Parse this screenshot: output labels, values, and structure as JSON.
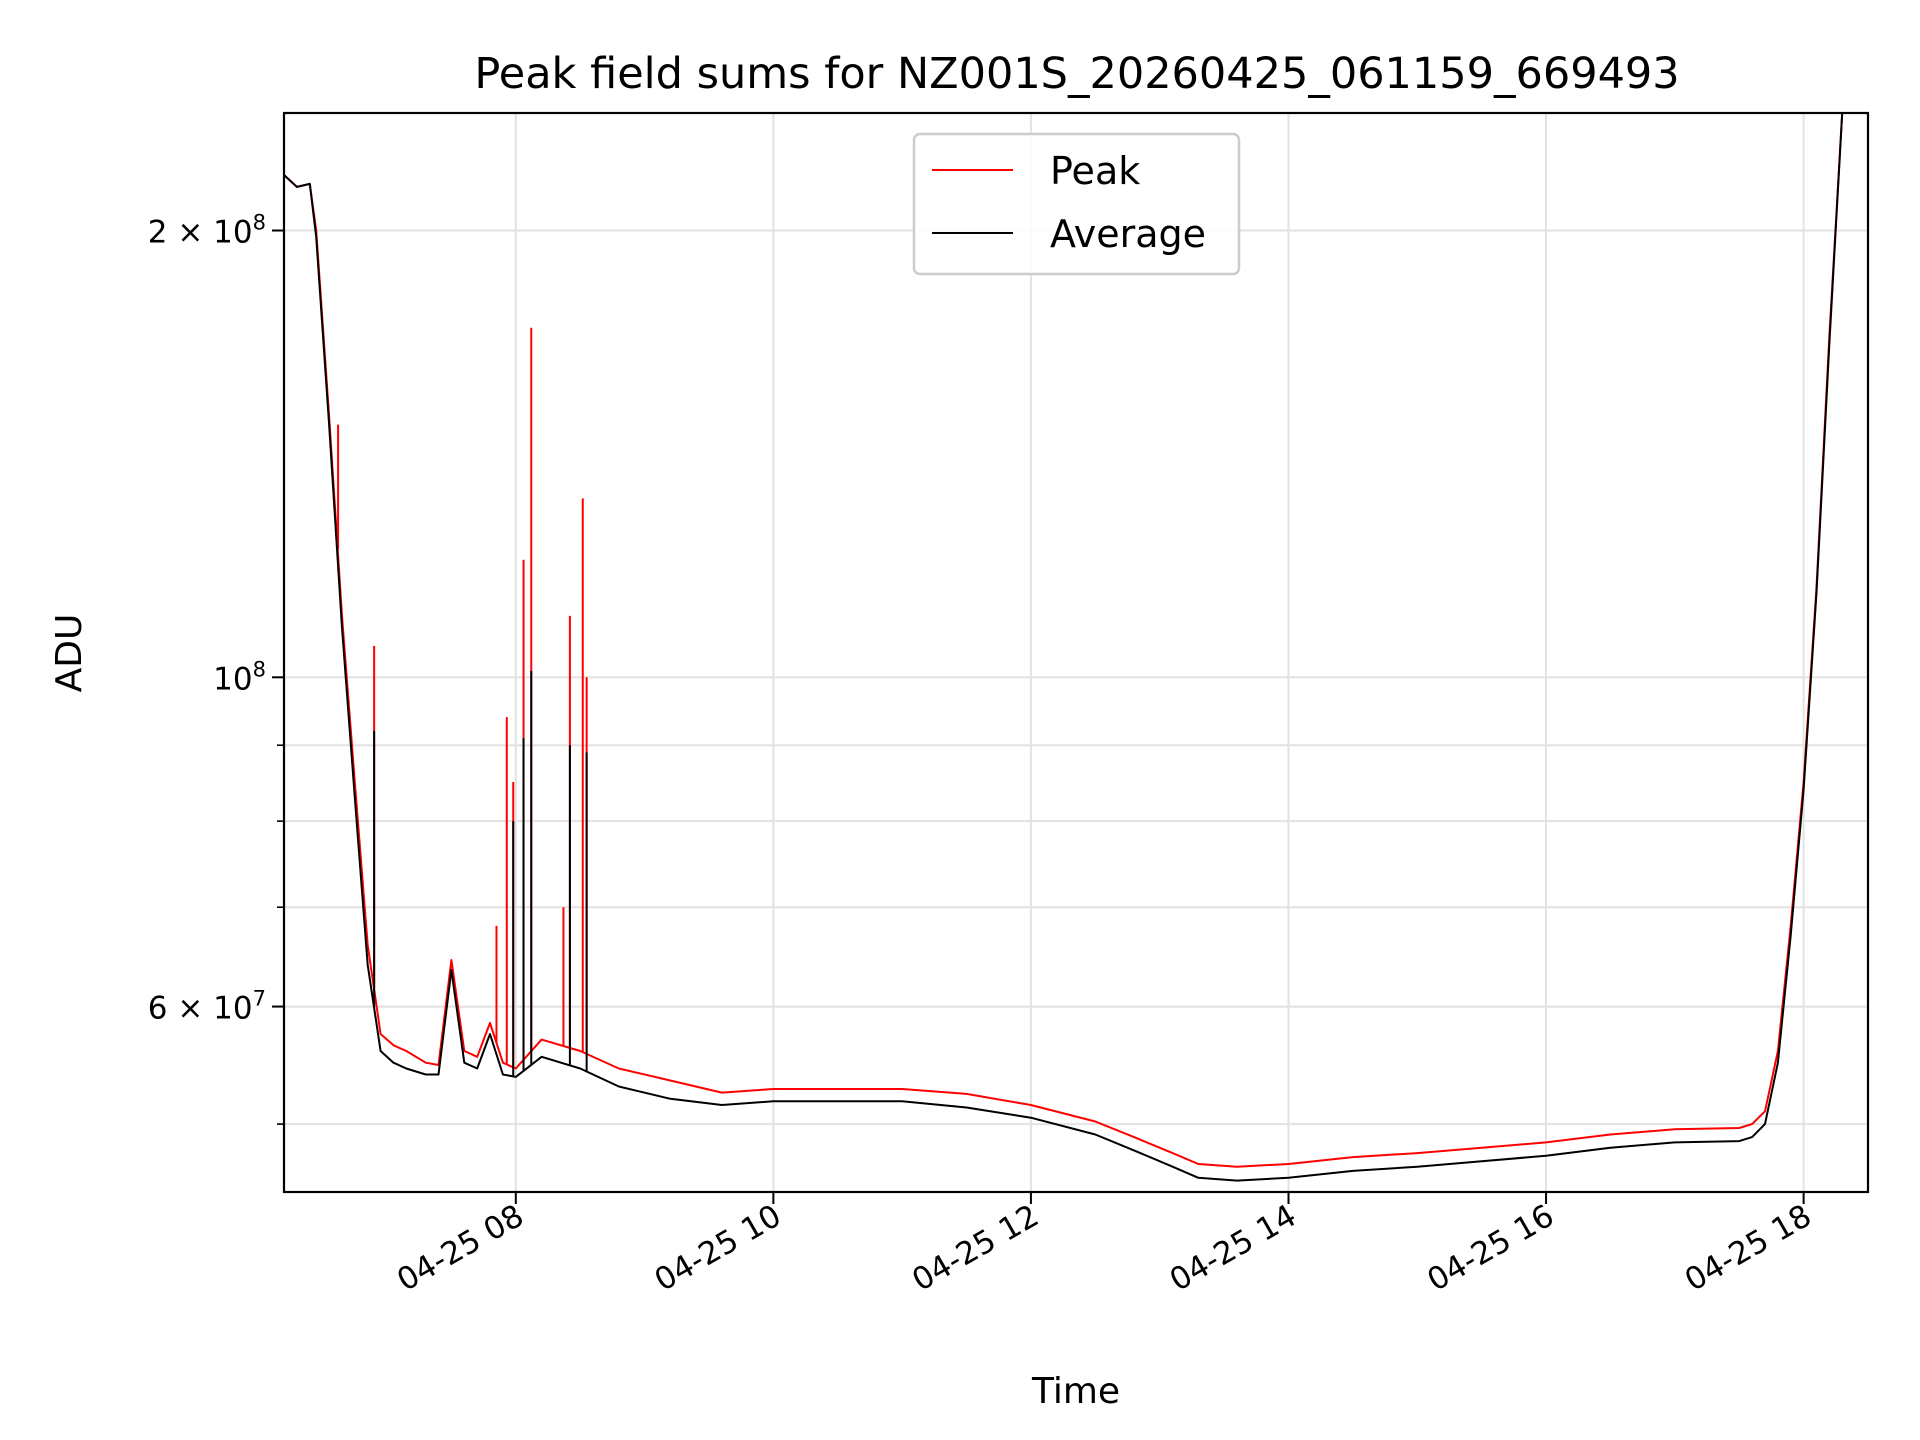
{
  "chart_data": {
    "type": "line",
    "title": "Peak field sums for NZ001S_20260425_061159_669493",
    "xlabel": "Time",
    "ylabel": "ADU",
    "yscale": "log",
    "xlim_hours": [
      6.2,
      18.5
    ],
    "ylim": [
      45000000,
      240000000
    ],
    "grid": true,
    "legend_position": "upper center",
    "x_ticks": [
      {
        "value": 8,
        "label": "04-25 08"
      },
      {
        "value": 10,
        "label": "04-25 10"
      },
      {
        "value": 12,
        "label": "04-25 12"
      },
      {
        "value": 14,
        "label": "04-25 14"
      },
      {
        "value": 16,
        "label": "04-25 16"
      },
      {
        "value": 18,
        "label": "04-25 18"
      }
    ],
    "y_major_ticks": [
      {
        "value": 100000000,
        "base": "10",
        "exp": "8",
        "mant": ""
      },
      {
        "value": 200000000,
        "base": "10",
        "exp": "8",
        "mant": "2 × "
      },
      {
        "value": 60000000,
        "base": "10",
        "exp": "7",
        "mant": "6 × "
      }
    ],
    "y_minor_ticks": [
      50000000,
      60000000,
      70000000,
      80000000,
      90000000,
      200000000
    ],
    "series": [
      {
        "name": "Peak",
        "color": "#ff0000",
        "x": [
          6.2,
          6.3,
          6.4,
          6.45,
          6.55,
          6.65,
          6.75,
          6.85,
          6.95,
          7.05,
          7.15,
          7.3,
          7.4,
          7.5,
          7.6,
          7.7,
          7.8,
          7.9,
          8.0,
          8.2,
          8.5,
          8.8,
          9.2,
          9.6,
          10.0,
          10.5,
          11.0,
          11.5,
          12.0,
          12.5,
          12.8,
          13.1,
          13.3,
          13.6,
          14.0,
          14.5,
          15.0,
          15.5,
          16.0,
          16.5,
          17.0,
          17.5,
          17.6,
          17.7,
          17.8,
          17.9,
          18.0,
          18.1,
          18.2,
          18.3
        ],
        "y": [
          218000000,
          214000000,
          215000000,
          200000000,
          150000000,
          110000000,
          85000000,
          66000000,
          57500000,
          56500000,
          56000000,
          55000000,
          54800000,
          64500000,
          56000000,
          55500000,
          58500000,
          55000000,
          54500000,
          57000000,
          56000000,
          54500000,
          53500000,
          52500000,
          52800000,
          52800000,
          52800000,
          52400000,
          51500000,
          50200000,
          49000000,
          47800000,
          47000000,
          46800000,
          47000000,
          47500000,
          47800000,
          48200000,
          48600000,
          49200000,
          49600000,
          49700000,
          50000000,
          51000000,
          56000000,
          68000000,
          85000000,
          115000000,
          170000000,
          240000000
        ]
      },
      {
        "name": "Average",
        "color": "#000000",
        "x": [
          6.2,
          6.3,
          6.4,
          6.45,
          6.55,
          6.65,
          6.75,
          6.85,
          6.95,
          7.05,
          7.15,
          7.3,
          7.4,
          7.5,
          7.6,
          7.7,
          7.8,
          7.9,
          8.0,
          8.2,
          8.5,
          8.8,
          9.2,
          9.6,
          10.0,
          10.5,
          11.0,
          11.5,
          12.0,
          12.5,
          12.8,
          13.1,
          13.3,
          13.6,
          14.0,
          14.5,
          15.0,
          15.5,
          16.0,
          16.5,
          17.0,
          17.5,
          17.6,
          17.7,
          17.8,
          17.9,
          18.0,
          18.1,
          18.2,
          18.3
        ],
        "y": [
          218000000,
          214000000,
          215000000,
          198000000,
          148000000,
          108000000,
          83000000,
          64000000,
          56000000,
          55000000,
          54500000,
          54000000,
          54000000,
          63500000,
          55000000,
          54500000,
          57500000,
          54000000,
          53800000,
          55500000,
          54500000,
          53000000,
          52000000,
          51500000,
          51800000,
          51800000,
          51800000,
          51300000,
          50500000,
          49200000,
          48000000,
          46800000,
          46000000,
          45800000,
          46000000,
          46500000,
          46800000,
          47200000,
          47600000,
          48200000,
          48600000,
          48700000,
          49000000,
          50000000,
          55000000,
          67000000,
          84000000,
          114000000,
          168000000,
          240000000
        ]
      }
    ],
    "spikes": {
      "Peak": [
        {
          "x": 6.55,
          "y": 150000000
        },
        {
          "x": 6.62,
          "y": 148000000
        },
        {
          "x": 6.9,
          "y": 105000000
        },
        {
          "x": 7.85,
          "y": 68000000
        },
        {
          "x": 7.93,
          "y": 94000000
        },
        {
          "x": 7.98,
          "y": 85000000
        },
        {
          "x": 8.06,
          "y": 120000000
        },
        {
          "x": 8.12,
          "y": 172000000
        },
        {
          "x": 8.37,
          "y": 70000000
        },
        {
          "x": 8.42,
          "y": 110000000
        },
        {
          "x": 8.52,
          "y": 132000000
        },
        {
          "x": 8.55,
          "y": 100000000
        }
      ],
      "Average": [
        {
          "x": 6.9,
          "y": 92000000
        },
        {
          "x": 7.98,
          "y": 80000000
        },
        {
          "x": 8.06,
          "y": 91000000
        },
        {
          "x": 8.12,
          "y": 101000000
        },
        {
          "x": 8.42,
          "y": 90000000
        },
        {
          "x": 8.55,
          "y": 89000000
        }
      ]
    }
  }
}
